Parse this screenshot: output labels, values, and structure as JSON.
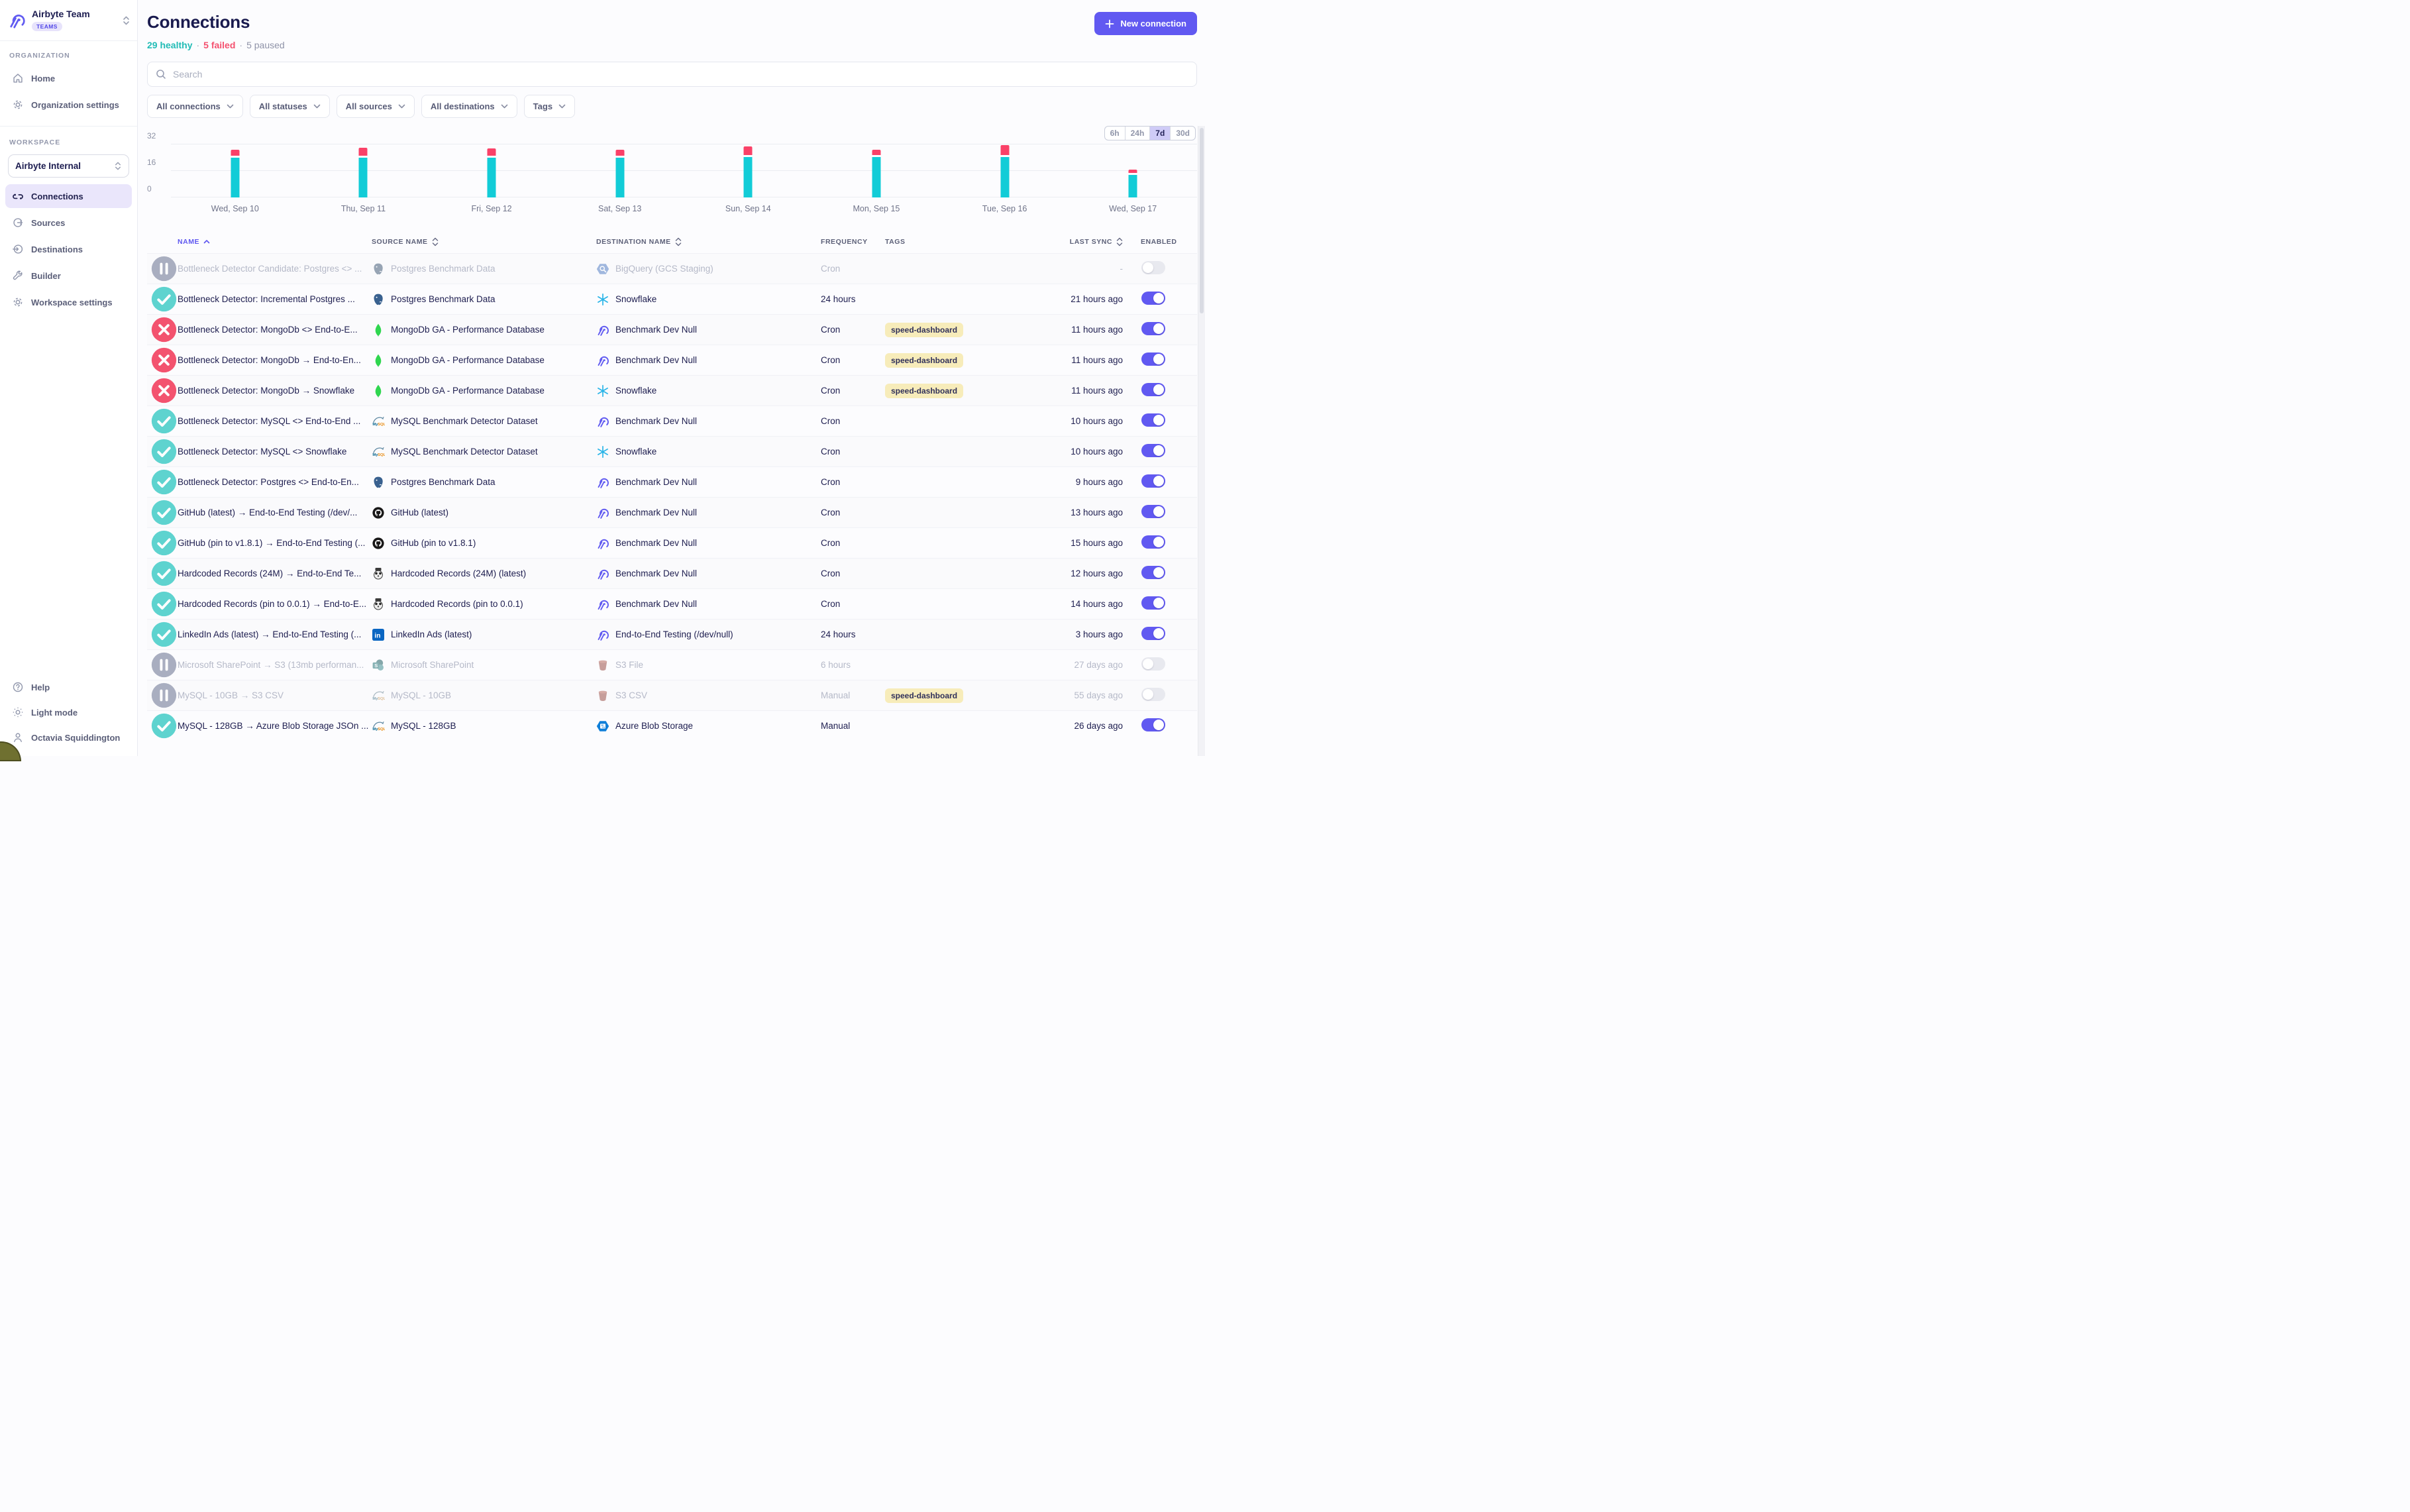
{
  "sidebar": {
    "team_name": "Airbyte Team",
    "team_badge": "TEAMS",
    "section_org": "ORGANIZATION",
    "org_items": [
      {
        "label": "Home"
      },
      {
        "label": "Organization settings"
      }
    ],
    "section_ws": "WORKSPACE",
    "workspace_select": "Airbyte Internal",
    "ws_items": [
      {
        "label": "Connections"
      },
      {
        "label": "Sources"
      },
      {
        "label": "Destinations"
      },
      {
        "label": "Builder"
      },
      {
        "label": "Workspace settings"
      }
    ],
    "bottom_items": [
      {
        "label": "Help"
      },
      {
        "label": "Light mode"
      },
      {
        "label": "Octavia Squiddington"
      }
    ]
  },
  "header": {
    "title": "Connections",
    "healthy": "29 healthy",
    "failed": "5 failed",
    "paused": "5 paused",
    "dot": "·",
    "new_connection": "New connection"
  },
  "search": {
    "placeholder": "Search"
  },
  "filters": [
    {
      "label": "All connections"
    },
    {
      "label": "All statuses"
    },
    {
      "label": "All sources"
    },
    {
      "label": "All destinations"
    },
    {
      "label": "Tags"
    }
  ],
  "time_ranges": [
    {
      "label": "6h",
      "active": false
    },
    {
      "label": "24h",
      "active": false
    },
    {
      "label": "7d",
      "active": true
    },
    {
      "label": "30d",
      "active": false
    }
  ],
  "chart_data": {
    "type": "bar",
    "stacked": true,
    "categories": [
      "Wed, Sep 10",
      "Thu, Sep 11",
      "Fri, Sep 12",
      "Sat, Sep 13",
      "Sun, Sep 14",
      "Mon, Sep 15",
      "Tue, Sep 16",
      "Wed, Sep 17"
    ],
    "series": [
      {
        "name": "succeeded",
        "color": "#12ccd7",
        "values": [
          24,
          24,
          24,
          24,
          24.5,
          24.5,
          24.5,
          13.5
        ]
      },
      {
        "name": "failed",
        "color": "#fa4168",
        "values": [
          3.5,
          5,
          4.5,
          3.5,
          5,
          3,
          6,
          2
        ]
      }
    ],
    "title": "",
    "xlabel": "",
    "ylabel": "",
    "ylim": [
      0,
      32
    ],
    "yticks": [
      0,
      16,
      32
    ],
    "grid": true,
    "legend": "none"
  },
  "table": {
    "headers": {
      "name": "NAME",
      "source": "SOURCE NAME",
      "destination": "DESTINATION NAME",
      "frequency": "FREQUENCY",
      "tags": "TAGS",
      "last_sync": "LAST SYNC",
      "enabled": "ENABLED"
    },
    "rows": [
      {
        "status": "paused",
        "name": "Bottleneck Detector Candidate: Postgres <> ...",
        "source": "Postgres Benchmark Data",
        "source_icon": "postgres",
        "destination": "BigQuery (GCS Staging)",
        "destination_icon": "bigquery",
        "frequency": "Cron",
        "tag": "",
        "last_sync": "-",
        "enabled": false
      },
      {
        "status": "success",
        "name": "Bottleneck Detector: Incremental Postgres ...",
        "source": "Postgres Benchmark Data",
        "source_icon": "postgres",
        "destination": "Snowflake",
        "destination_icon": "snowflake",
        "frequency": "24 hours",
        "tag": "",
        "last_sync": "21 hours ago",
        "enabled": true
      },
      {
        "status": "failed",
        "name": "Bottleneck Detector: MongoDb <> End-to-E...",
        "source": "MongoDb GA - Performance Database",
        "source_icon": "mongodb",
        "destination": "Benchmark Dev Null",
        "destination_icon": "dev-null",
        "frequency": "Cron",
        "tag": "speed-dashboard",
        "last_sync": "11 hours ago",
        "enabled": true
      },
      {
        "status": "failed",
        "name": "Bottleneck Detector: MongoDb → End-to-En...",
        "source": "MongoDb GA - Performance Database",
        "source_icon": "mongodb",
        "destination": "Benchmark Dev Null",
        "destination_icon": "dev-null",
        "frequency": "Cron",
        "tag": "speed-dashboard",
        "last_sync": "11 hours ago",
        "enabled": true
      },
      {
        "status": "failed",
        "name": "Bottleneck Detector: MongoDb → Snowflake",
        "source": "MongoDb GA - Performance Database",
        "source_icon": "mongodb",
        "destination": "Snowflake",
        "destination_icon": "snowflake",
        "frequency": "Cron",
        "tag": "speed-dashboard",
        "last_sync": "11 hours ago",
        "enabled": true
      },
      {
        "status": "success",
        "name": "Bottleneck Detector: MySQL <> End-to-End ...",
        "source": "MySQL Benchmark Detector Dataset",
        "source_icon": "mysql",
        "destination": "Benchmark Dev Null",
        "destination_icon": "dev-null",
        "frequency": "Cron",
        "tag": "",
        "last_sync": "10 hours ago",
        "enabled": true
      },
      {
        "status": "success",
        "name": "Bottleneck Detector: MySQL <> Snowflake",
        "source": "MySQL Benchmark Detector Dataset",
        "source_icon": "mysql",
        "destination": "Snowflake",
        "destination_icon": "snowflake",
        "frequency": "Cron",
        "tag": "",
        "last_sync": "10 hours ago",
        "enabled": true
      },
      {
        "status": "success",
        "name": "Bottleneck Detector: Postgres <> End-to-En...",
        "source": "Postgres Benchmark Data",
        "source_icon": "postgres",
        "destination": "Benchmark Dev Null",
        "destination_icon": "dev-null",
        "frequency": "Cron",
        "tag": "",
        "last_sync": "9 hours ago",
        "enabled": true
      },
      {
        "status": "success",
        "name": "GitHub (latest) → End-to-End Testing (/dev/...",
        "source": "GitHub (latest)",
        "source_icon": "github",
        "destination": "Benchmark Dev Null",
        "destination_icon": "dev-null",
        "frequency": "Cron",
        "tag": "",
        "last_sync": "13 hours ago",
        "enabled": true
      },
      {
        "status": "success",
        "name": "GitHub (pin to v1.8.1) → End-to-End Testing (...",
        "source": "GitHub (pin to v1.8.1)",
        "source_icon": "github",
        "destination": "Benchmark Dev Null",
        "destination_icon": "dev-null",
        "frequency": "Cron",
        "tag": "",
        "last_sync": "15 hours ago",
        "enabled": true
      },
      {
        "status": "success",
        "name": "Hardcoded Records (24M) → End-to-End Te...",
        "source": "Hardcoded Records (24M) (latest)",
        "source_icon": "hardcoded-records",
        "destination": "Benchmark Dev Null",
        "destination_icon": "dev-null",
        "frequency": "Cron",
        "tag": "",
        "last_sync": "12 hours ago",
        "enabled": true
      },
      {
        "status": "success",
        "name": "Hardcoded Records (pin to 0.0.1) → End-to-E...",
        "source": "Hardcoded Records (pin to 0.0.1)",
        "source_icon": "hardcoded-records",
        "destination": "Benchmark Dev Null",
        "destination_icon": "dev-null",
        "frequency": "Cron",
        "tag": "",
        "last_sync": "14 hours ago",
        "enabled": true
      },
      {
        "status": "success",
        "name": "LinkedIn Ads (latest) → End-to-End Testing (...",
        "source": "LinkedIn Ads (latest)",
        "source_icon": "linkedin",
        "destination": "End-to-End Testing (/dev/null)",
        "destination_icon": "dev-null",
        "frequency": "24 hours",
        "tag": "",
        "last_sync": "3 hours ago",
        "enabled": true
      },
      {
        "status": "paused",
        "name": "Microsoft SharePoint → S3 (13mb performan...",
        "source": "Microsoft SharePoint",
        "source_icon": "sharepoint",
        "destination": "S3 File",
        "destination_icon": "s3",
        "frequency": "6 hours",
        "tag": "",
        "last_sync": "27 days ago",
        "enabled": false
      },
      {
        "status": "paused",
        "name": "MySQL - 10GB → S3 CSV",
        "source": "MySQL - 10GB",
        "source_icon": "mysql",
        "destination": "S3 CSV",
        "destination_icon": "s3",
        "frequency": "Manual",
        "tag": "speed-dashboard",
        "last_sync": "55 days ago",
        "enabled": false
      },
      {
        "status": "success",
        "name": "MySQL - 128GB → Azure Blob Storage JSOn ...",
        "source": "MySQL - 128GB",
        "source_icon": "mysql",
        "destination": "Azure Blob Storage",
        "destination_icon": "azure-blob",
        "frequency": "Manual",
        "tag": "",
        "last_sync": "26 days ago",
        "enabled": true
      }
    ]
  },
  "theme": {
    "accent": "#6159f1",
    "healthy": "#22bcb6",
    "failed": "#f4516f",
    "paused_text": "#8f93a8",
    "chart_success": "#12ccd7",
    "chart_failed": "#fa4168",
    "tag_bg": "#f7ecba",
    "active_range_bg": "#cfcbf7",
    "dark_navy": "#1b1b4f"
  }
}
